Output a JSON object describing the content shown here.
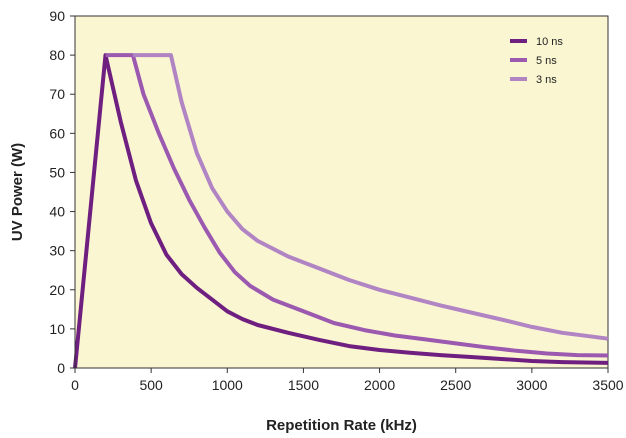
{
  "chart_data": {
    "type": "line",
    "title": "",
    "xlabel": "Repetition Rate (kHz)",
    "ylabel": "UV Power (W)",
    "xlim": [
      0,
      3500
    ],
    "ylim": [
      0,
      90
    ],
    "xticks": [
      0,
      500,
      1000,
      1500,
      2000,
      2500,
      3000,
      3500
    ],
    "yticks": [
      0,
      10,
      20,
      30,
      40,
      50,
      60,
      70,
      80,
      90
    ],
    "xtick_labels": [
      "0",
      "500",
      "1000",
      "1500",
      "2000",
      "2500",
      "3000",
      "3500"
    ],
    "ytick_labels": [
      "0",
      "10",
      "20",
      "30",
      "40",
      "50",
      "60",
      "70",
      "80",
      "90"
    ],
    "grid": false,
    "legend_position": "top-right",
    "plot_background": "#fbf6d2",
    "series": [
      {
        "name": "10 ns",
        "color": "#6e1f80",
        "points": [
          [
            0,
            0
          ],
          [
            200,
            80
          ],
          [
            300,
            63
          ],
          [
            400,
            48
          ],
          [
            500,
            37
          ],
          [
            600,
            29
          ],
          [
            700,
            24
          ],
          [
            800,
            20.5
          ],
          [
            900,
            17.5
          ],
          [
            1000,
            14.5
          ],
          [
            1100,
            12.5
          ],
          [
            1200,
            11
          ],
          [
            1400,
            9
          ],
          [
            1600,
            7.2
          ],
          [
            1800,
            5.6
          ],
          [
            2000,
            4.6
          ],
          [
            2200,
            3.9
          ],
          [
            2400,
            3.3
          ],
          [
            2600,
            2.8
          ],
          [
            2800,
            2.3
          ],
          [
            3000,
            1.8
          ],
          [
            3200,
            1.5
          ],
          [
            3500,
            1.3
          ]
        ]
      },
      {
        "name": "5 ns",
        "color": "#9b59b0",
        "points": [
          [
            200,
            80
          ],
          [
            380,
            80
          ],
          [
            450,
            70
          ],
          [
            550,
            60
          ],
          [
            650,
            51
          ],
          [
            750,
            43
          ],
          [
            850,
            36
          ],
          [
            950,
            29.5
          ],
          [
            1050,
            24.5
          ],
          [
            1150,
            21
          ],
          [
            1300,
            17.5
          ],
          [
            1500,
            14.5
          ],
          [
            1700,
            11.5
          ],
          [
            1900,
            9.7
          ],
          [
            2100,
            8.3
          ],
          [
            2300,
            7.3
          ],
          [
            2500,
            6.3
          ],
          [
            2700,
            5.3
          ],
          [
            2900,
            4.4
          ],
          [
            3100,
            3.7
          ],
          [
            3300,
            3.3
          ],
          [
            3500,
            3.2
          ]
        ]
      },
      {
        "name": "3 ns",
        "color": "#b184c4",
        "points": [
          [
            380,
            80
          ],
          [
            630,
            80
          ],
          [
            700,
            68
          ],
          [
            800,
            55
          ],
          [
            900,
            46
          ],
          [
            1000,
            40
          ],
          [
            1100,
            35.5
          ],
          [
            1200,
            32.5
          ],
          [
            1400,
            28.5
          ],
          [
            1600,
            25.5
          ],
          [
            1800,
            22.5
          ],
          [
            2000,
            20
          ],
          [
            2200,
            18
          ],
          [
            2400,
            16
          ],
          [
            2600,
            14.2
          ],
          [
            2800,
            12.4
          ],
          [
            3000,
            10.5
          ],
          [
            3200,
            9
          ],
          [
            3400,
            8
          ],
          [
            3500,
            7.5
          ]
        ]
      }
    ]
  }
}
